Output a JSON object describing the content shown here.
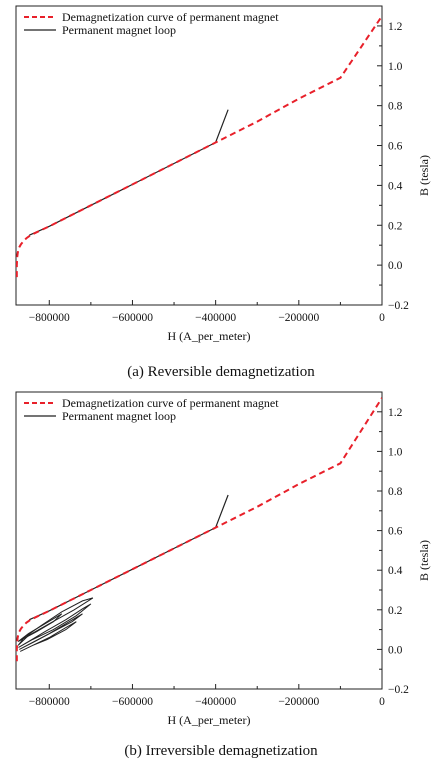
{
  "chart_data": [
    {
      "type": "line",
      "caption": "(a) Reversible demagnetization",
      "xlabel": "H (A_per_meter)",
      "ylabel": "B (tesla)",
      "xlim": [
        -880000,
        0
      ],
      "ylim": [
        -0.2,
        1.3
      ],
      "x_ticks": [
        -800000,
        -600000,
        -400000,
        -200000,
        0
      ],
      "x_tick_labels": [
        "−800000",
        "−600000",
        "−400000",
        "−200000",
        "0"
      ],
      "y_ticks": [
        -0.2,
        0.0,
        0.2,
        0.4,
        0.6,
        0.8,
        1.0,
        1.2
      ],
      "y_tick_labels": [
        "−0.2",
        "0.0",
        "0.2",
        "0.4",
        "0.6",
        "0.8",
        "1.0",
        "1.2"
      ],
      "grid": false,
      "legend_position": "top-left",
      "series": [
        {
          "name": "Demagnetization curve of permanent magnet",
          "color": "#e8202a",
          "style": "dashed",
          "x": [
            -878000,
            -878000,
            -877000,
            -876000,
            -874000,
            -872000,
            -868000,
            -862000,
            -855000,
            -845000,
            -830000,
            -800000,
            -700000,
            -600000,
            -500000,
            -400000,
            -300000,
            -200000,
            -100000,
            0
          ],
          "y": [
            -0.06,
            0.0,
            0.04,
            0.06,
            0.08,
            0.09,
            0.105,
            0.12,
            0.135,
            0.15,
            0.165,
            0.195,
            0.3,
            0.405,
            0.51,
            0.615,
            0.72,
            0.835,
            0.94,
            1.25
          ]
        },
        {
          "name": "Permanent magnet loop",
          "color": "#222222",
          "style": "solid",
          "x": [
            -848000,
            -800000,
            -700000,
            -600000,
            -500000,
            -400000,
            -370000
          ],
          "y": [
            0.15,
            0.195,
            0.3,
            0.405,
            0.51,
            0.615,
            0.78
          ]
        }
      ]
    },
    {
      "type": "line",
      "caption": "(b) Irreversible demagnetization",
      "xlabel": "H (A_per_meter)",
      "ylabel": "B (tesla)",
      "xlim": [
        -880000,
        0
      ],
      "ylim": [
        -0.2,
        1.3
      ],
      "x_ticks": [
        -800000,
        -600000,
        -400000,
        -200000,
        0
      ],
      "x_tick_labels": [
        "−800000",
        "−600000",
        "−400000",
        "−200000",
        "0"
      ],
      "y_ticks": [
        -0.2,
        0.0,
        0.2,
        0.4,
        0.6,
        0.8,
        1.0,
        1.2
      ],
      "y_tick_labels": [
        "−0.2",
        "0.0",
        "0.2",
        "0.4",
        "0.6",
        "0.8",
        "1.0",
        "1.2"
      ],
      "grid": false,
      "legend_position": "top-left",
      "series": [
        {
          "name": "Demagnetization curve of permanent magnet",
          "color": "#e8202a",
          "style": "dashed",
          "x": [
            -878000,
            -878000,
            -877000,
            -876000,
            -874000,
            -872000,
            -868000,
            -862000,
            -855000,
            -845000,
            -830000,
            -800000,
            -700000,
            -600000,
            -500000,
            -400000,
            -300000,
            -200000,
            -100000,
            0
          ],
          "y": [
            -0.06,
            0.0,
            0.04,
            0.06,
            0.08,
            0.09,
            0.105,
            0.12,
            0.135,
            0.15,
            0.165,
            0.195,
            0.3,
            0.405,
            0.51,
            0.615,
            0.72,
            0.835,
            0.94,
            1.27
          ]
        },
        {
          "name": "Permanent magnet loop",
          "color": "#222222",
          "style": "solid",
          "minor_loops": [
            {
              "x": [
                -875000,
                -860000,
                -820000,
                -770000,
                -720000,
                -695000,
                -740000,
                -800000,
                -850000,
                -875000
              ],
              "y": [
                0.02,
                0.06,
                0.12,
                0.19,
                0.245,
                0.26,
                0.2,
                0.13,
                0.07,
                0.02
              ]
            },
            {
              "x": [
                -874000,
                -850000,
                -810000,
                -760000,
                -720000,
                -700000,
                -735000,
                -790000,
                -840000,
                -874000
              ],
              "y": [
                0.01,
                0.04,
                0.09,
                0.15,
                0.205,
                0.23,
                0.17,
                0.1,
                0.05,
                0.01
              ]
            },
            {
              "x": [
                -872000,
                -845000,
                -800000,
                -760000,
                -720000,
                -745000,
                -790000,
                -835000,
                -872000
              ],
              "y": [
                0.0,
                0.03,
                0.08,
                0.13,
                0.18,
                0.14,
                0.09,
                0.04,
                0.0
              ]
            },
            {
              "x": [
                -870000,
                -840000,
                -800000,
                -760000,
                -735000,
                -760000,
                -805000,
                -840000,
                -870000
              ],
              "y": [
                -0.01,
                0.02,
                0.06,
                0.11,
                0.14,
                0.1,
                0.05,
                0.02,
                -0.01
              ]
            },
            {
              "x": [
                -875000,
                -850000,
                -810000,
                -770000,
                -790000,
                -830000,
                -875000
              ],
              "y": [
                0.04,
                0.08,
                0.13,
                0.18,
                0.14,
                0.09,
                0.04
              ]
            }
          ],
          "x": [
            -848000,
            -800000,
            -700000,
            -600000,
            -500000,
            -400000,
            -370000
          ],
          "y": [
            0.15,
            0.195,
            0.3,
            0.405,
            0.51,
            0.615,
            0.78
          ]
        }
      ]
    }
  ]
}
